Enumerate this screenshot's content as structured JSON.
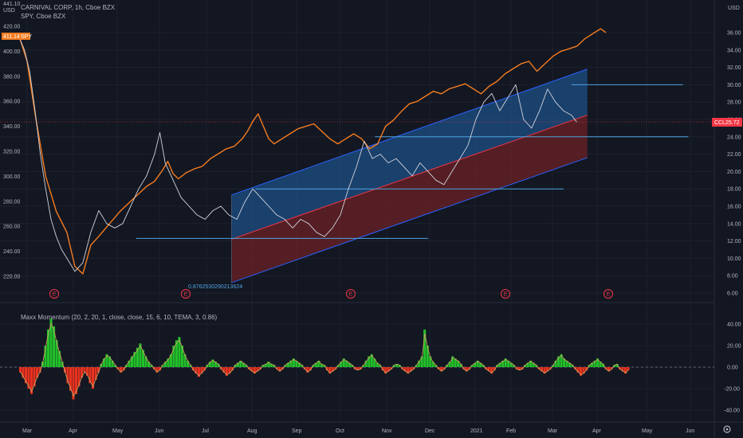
{
  "header": {
    "symbol_line": "CARNIVAL CORP, 1h, Cboe BZX",
    "compare_line": "SPY, Cboe BZX",
    "left_units": "441.10\nUSD",
    "right_units": "USD",
    "spy_tag": "411.14",
    "spy_tag_name": "SPY",
    "ccl_tag": "25.72",
    "ccl_tag_name": "CCL",
    "fib_label": "0.8762530290213624"
  },
  "indicator": {
    "title": "Maxx Momentum (20, 2, 20, 1, close, close, 15, 6, 10, TEMA, 3, 0.86)"
  },
  "colors": {
    "background": "#131722",
    "grid": "#1e222d",
    "spy_line": "#f57c1f",
    "ccl_line": "#d1d4dc",
    "channel_upper": "#1e4f86",
    "channel_lower": "#6b2226",
    "channel_edge": "#2962ff",
    "hline": "#4fa3e0",
    "price_line": "#f23645",
    "mom_pos": "#22c02a",
    "mom_neg": "#e8321f",
    "earnings": "#f23645"
  },
  "chart_data": [
    {
      "type": "line",
      "title": "CARNIVAL CORP, 1h, Cboe BZX",
      "x_ticks": [
        "Mar",
        "Apr",
        "May",
        "Jun",
        "Jul",
        "Aug",
        "Sep",
        "Oct",
        "Nov",
        "Dec",
        "2021",
        "Feb",
        "Mar",
        "Apr",
        "May",
        "Jun"
      ],
      "left_axis_ticks": [
        420.0,
        400.0,
        380.0,
        360.0,
        340.0,
        320.0,
        300.0,
        280.0,
        260.0,
        240.0,
        220.0
      ],
      "right_axis_ticks": [
        36.0,
        34.0,
        32.0,
        30.0,
        28.0,
        26.0,
        24.0,
        22.0,
        20.0,
        18.0,
        16.0,
        14.0,
        12.0,
        10.0,
        8.0,
        6.0
      ],
      "series": [
        {
          "name": "SPY",
          "axis": "left",
          "points": [
            [
              0,
              412
            ],
            [
              3,
              392
            ],
            [
              6,
              350
            ],
            [
              10,
              300
            ],
            [
              14,
              272
            ],
            [
              18,
              255
            ],
            [
              21,
              228
            ],
            [
              24,
              222
            ],
            [
              27,
              245
            ],
            [
              30,
              252
            ],
            [
              34,
              262
            ],
            [
              38,
              272
            ],
            [
              42,
              280
            ],
            [
              45,
              286
            ],
            [
              48,
              292
            ],
            [
              51,
              296
            ],
            [
              54,
              305
            ],
            [
              56,
              312
            ],
            [
              58,
              302
            ],
            [
              60,
              298
            ],
            [
              63,
              303
            ],
            [
              66,
              306
            ],
            [
              69,
              308
            ],
            [
              72,
              314
            ],
            [
              75,
              318
            ],
            [
              78,
              322
            ],
            [
              81,
              324
            ],
            [
              84,
              330
            ],
            [
              86,
              336
            ],
            [
              88,
              344
            ],
            [
              90,
              350
            ],
            [
              92,
              340
            ],
            [
              94,
              330
            ],
            [
              96,
              326
            ],
            [
              99,
              330
            ],
            [
              102,
              334
            ],
            [
              105,
              338
            ],
            [
              108,
              340
            ],
            [
              111,
              342
            ],
            [
              114,
              336
            ],
            [
              117,
              330
            ],
            [
              120,
              326
            ],
            [
              123,
              330
            ],
            [
              126,
              334
            ],
            [
              129,
              330
            ],
            [
              132,
              322
            ],
            [
              135,
              326
            ],
            [
              138,
              340
            ],
            [
              141,
              345
            ],
            [
              144,
              352
            ],
            [
              147,
              358
            ],
            [
              150,
              360
            ],
            [
              153,
              364
            ],
            [
              156,
              368
            ],
            [
              159,
              366
            ],
            [
              162,
              370
            ],
            [
              165,
              372
            ],
            [
              168,
              374
            ],
            [
              171,
              370
            ],
            [
              174,
              366
            ],
            [
              177,
              372
            ],
            [
              180,
              376
            ],
            [
              183,
              382
            ],
            [
              186,
              386
            ],
            [
              189,
              390
            ],
            [
              192,
              392
            ],
            [
              195,
              384
            ],
            [
              198,
              390
            ],
            [
              201,
              396
            ],
            [
              204,
              400
            ],
            [
              207,
              402
            ],
            [
              210,
              404
            ],
            [
              213,
              410
            ],
            [
              216,
              414
            ],
            [
              219,
              418
            ],
            [
              221,
              415
            ]
          ]
        },
        {
          "name": "CCL",
          "axis": "right",
          "points": [
            [
              0,
              35.5
            ],
            [
              2,
              34.0
            ],
            [
              4,
              31.5
            ],
            [
              6,
              27.0
            ],
            [
              8,
              22.0
            ],
            [
              10,
              18.0
            ],
            [
              12,
              14.5
            ],
            [
              14,
              12.5
            ],
            [
              16,
              11.0
            ],
            [
              18,
              10.0
            ],
            [
              21,
              8.5
            ],
            [
              24,
              9.5
            ],
            [
              27,
              13.0
            ],
            [
              30,
              15.5
            ],
            [
              33,
              14.0
            ],
            [
              36,
              13.5
            ],
            [
              39,
              14.0
            ],
            [
              42,
              16.0
            ],
            [
              45,
              18.0
            ],
            [
              48,
              19.5
            ],
            [
              51,
              22.0
            ],
            [
              53,
              24.5
            ],
            [
              55,
              21.0
            ],
            [
              58,
              19.0
            ],
            [
              61,
              17.0
            ],
            [
              64,
              16.0
            ],
            [
              67,
              15.0
            ],
            [
              70,
              14.5
            ],
            [
              73,
              15.5
            ],
            [
              76,
              16.0
            ],
            [
              79,
              15.0
            ],
            [
              82,
              14.5
            ],
            [
              85,
              16.5
            ],
            [
              88,
              18.0
            ],
            [
              91,
              17.0
            ],
            [
              94,
              16.0
            ],
            [
              97,
              15.0
            ],
            [
              100,
              14.5
            ],
            [
              103,
              13.5
            ],
            [
              106,
              14.5
            ],
            [
              109,
              14.0
            ],
            [
              112,
              13.0
            ],
            [
              115,
              12.5
            ],
            [
              118,
              13.5
            ],
            [
              121,
              15.0
            ],
            [
              124,
              18.0
            ],
            [
              127,
              20.5
            ],
            [
              130,
              23.5
            ],
            [
              133,
              21.5
            ],
            [
              136,
              22.0
            ],
            [
              139,
              21.0
            ],
            [
              142,
              21.5
            ],
            [
              145,
              20.5
            ],
            [
              148,
              19.5
            ],
            [
              151,
              21.0
            ],
            [
              154,
              20.0
            ],
            [
              157,
              19.0
            ],
            [
              160,
              18.5
            ],
            [
              163,
              20.0
            ],
            [
              166,
              21.5
            ],
            [
              169,
              23.0
            ],
            [
              172,
              26.0
            ],
            [
              175,
              28.0
            ],
            [
              178,
              29.0
            ],
            [
              181,
              27.0
            ],
            [
              184,
              28.5
            ],
            [
              187,
              30.0
            ],
            [
              190,
              26.0
            ],
            [
              193,
              25.0
            ],
            [
              196,
              27.0
            ],
            [
              199,
              29.5
            ],
            [
              202,
              28.0
            ],
            [
              205,
              27.0
            ],
            [
              208,
              26.5
            ],
            [
              210,
              25.7
            ]
          ]
        }
      ],
      "channel": {
        "upper_start": 17.3,
        "upper_end": 31.8,
        "mid_start": 12.2,
        "mid_end": 26.5,
        "lower_start": 7.2,
        "lower_end": 21.6,
        "start_x": 80,
        "end_x": 214
      },
      "horizontal_levels": [
        {
          "value": 12.3,
          "start_x": 44,
          "end_x": 154
        },
        {
          "value": 18.0,
          "start_x": 89,
          "end_x": 205
        },
        {
          "value": 24.0,
          "start_x": 134,
          "end_x": 252
        },
        {
          "value": 30.0,
          "start_x": 208,
          "end_x": 250
        }
      ],
      "current_price_line": 25.72,
      "earnings_markers": [
        "E",
        "E",
        "E",
        "E",
        "E"
      ]
    },
    {
      "type": "bar",
      "title": "Maxx Momentum (20, 2, 20, 1, close, close, 15, 6, 10, TEMA, 3, 0.86)",
      "right_axis_ticks": [
        40.0,
        20.0,
        0.0,
        -20.0,
        -40.0
      ],
      "values": [
        -5,
        -10,
        -15,
        -20,
        -25,
        -18,
        -10,
        -5,
        5,
        20,
        35,
        45,
        38,
        25,
        15,
        5,
        -5,
        -15,
        -22,
        -30,
        -25,
        -18,
        -10,
        -5,
        -8,
        -15,
        -20,
        -12,
        -5,
        3,
        8,
        12,
        10,
        6,
        2,
        -2,
        -5,
        -3,
        2,
        6,
        10,
        14,
        18,
        22,
        16,
        10,
        5,
        2,
        -2,
        -5,
        -3,
        2,
        5,
        8,
        12,
        20,
        25,
        28,
        20,
        12,
        6,
        2,
        -3,
        -6,
        -9,
        -6,
        -3,
        2,
        5,
        7,
        5,
        3,
        -2,
        -5,
        -8,
        -6,
        -3,
        2,
        4,
        6,
        4,
        2,
        -2,
        -4,
        -6,
        -4,
        -2,
        2,
        3,
        5,
        3,
        2,
        -2,
        -4,
        -2,
        2,
        4,
        6,
        8,
        6,
        4,
        2,
        -2,
        -5,
        -3,
        2,
        4,
        6,
        3,
        2,
        -3,
        -6,
        -4,
        -2,
        2,
        5,
        8,
        6,
        4,
        2,
        -2,
        -3,
        -2,
        2,
        6,
        10,
        12,
        8,
        4,
        2,
        -3,
        -6,
        -4,
        -2,
        2,
        3,
        2,
        -2,
        -4,
        -6,
        -4,
        -2,
        2,
        6,
        10,
        35,
        20,
        10,
        5,
        2,
        -2,
        -4,
        -2,
        2,
        5,
        10,
        8,
        6,
        3,
        -2,
        -4,
        -2,
        2,
        4,
        6,
        4,
        2,
        -2,
        -4,
        -6,
        -3,
        2,
        4,
        6,
        8,
        6,
        4,
        2,
        -2,
        -3,
        -2,
        2,
        4,
        6,
        4,
        2,
        -2,
        -4,
        -6,
        -4,
        -2,
        2,
        6,
        10,
        12,
        8,
        6,
        4,
        2,
        -2,
        -5,
        -8,
        -6,
        -3,
        2,
        4,
        6,
        8,
        5,
        3,
        -2,
        -4,
        -2,
        2,
        3,
        -2,
        -4,
        -6,
        -3
      ]
    }
  ]
}
